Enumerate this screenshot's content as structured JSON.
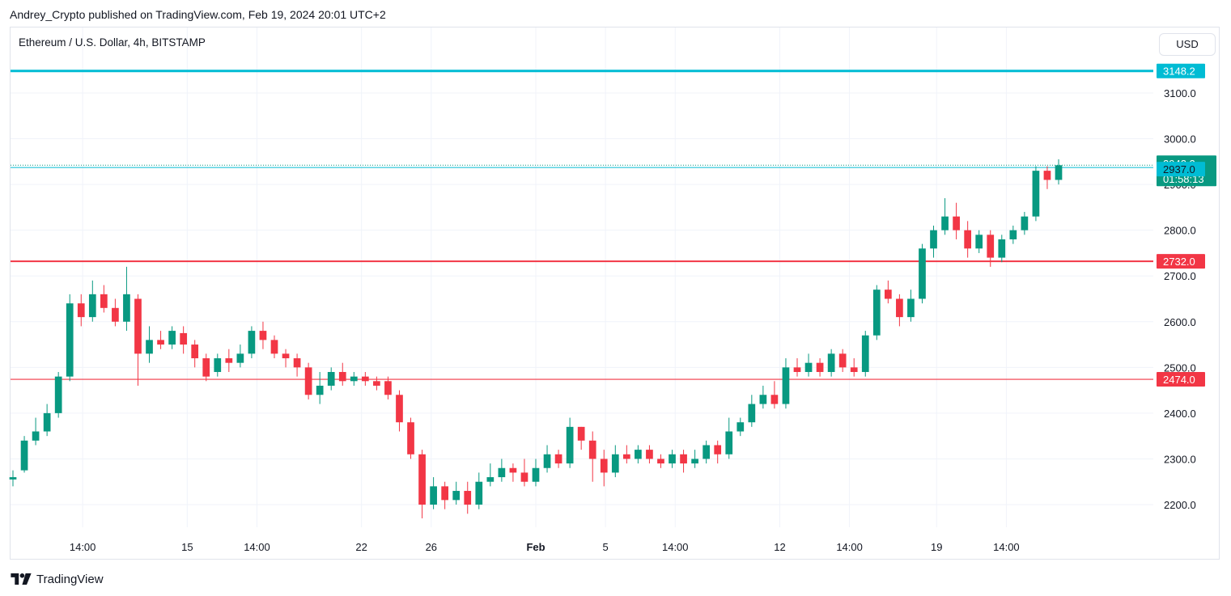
{
  "header": {
    "published_by": "Andrey_Crypto published on TradingView.com, Feb 19, 2024 20:01 UTC+2"
  },
  "symbol_line": "Ethereum / U.S. Dollar, 4h, BITSTAMP",
  "currency_button": "USD",
  "footer": {
    "brand": "TradingView"
  },
  "colors": {
    "up": "#089981",
    "down": "#f23645",
    "support": "#f23645",
    "resistance": "#00bcd4",
    "grid": "#f0f3fa"
  },
  "chart_data": {
    "type": "candlestick",
    "title": "Ethereum / U.S. Dollar, 4h, BITSTAMP",
    "ylim": [
      2150,
      3200
    ],
    "y_ticks": [
      "3100.0",
      "3000.0",
      "2900.0",
      "2800.0",
      "2700.0",
      "2600.0",
      "2500.0",
      "2400.0",
      "2300.0",
      "2200.0"
    ],
    "x_ticks": [
      "14:00",
      "15",
      "14:00",
      "22",
      "26",
      "Feb",
      "5",
      "14:00",
      "12",
      "14:00",
      "19",
      "14:00"
    ],
    "x_tick_positions": [
      4,
      10,
      14,
      20,
      24,
      30,
      34,
      38,
      44,
      48,
      53,
      57
    ],
    "x_tick_bold": [
      false,
      false,
      false,
      false,
      false,
      true,
      false,
      false,
      false,
      false,
      false,
      false
    ],
    "horizontal_levels": [
      {
        "label": "3148.2",
        "value": 3148.2,
        "color": "#00bcd4",
        "style": "thick"
      },
      {
        "label": "2732.0",
        "value": 2732.0,
        "color": "#f23645",
        "style": "solid"
      },
      {
        "label": "2474.0",
        "value": 2474.0,
        "color": "#f23645",
        "style": "thin"
      }
    ],
    "last_price": {
      "value": "2942.2",
      "countdown": "01:58:13",
      "color": "#089981"
    },
    "alert_level": {
      "value": "2937.0",
      "color": "#00bcd4"
    },
    "ohlc": [
      [
        2255,
        2260,
        2240,
        2275
      ],
      [
        2275,
        2340,
        2270,
        2350
      ],
      [
        2340,
        2360,
        2330,
        2390
      ],
      [
        2360,
        2400,
        2350,
        2420
      ],
      [
        2400,
        2480,
        2390,
        2490
      ],
      [
        2480,
        2640,
        2470,
        2660
      ],
      [
        2640,
        2610,
        2590,
        2660
      ],
      [
        2610,
        2660,
        2600,
        2690
      ],
      [
        2660,
        2630,
        2620,
        2680
      ],
      [
        2630,
        2600,
        2590,
        2650
      ],
      [
        2600,
        2660,
        2580,
        2720
      ],
      [
        2650,
        2530,
        2460,
        2660
      ],
      [
        2530,
        2560,
        2510,
        2590
      ],
      [
        2560,
        2550,
        2540,
        2580
      ],
      [
        2550,
        2580,
        2540,
        2590
      ],
      [
        2575,
        2550,
        2530,
        2590
      ],
      [
        2550,
        2520,
        2500,
        2560
      ],
      [
        2520,
        2480,
        2470,
        2530
      ],
      [
        2490,
        2520,
        2480,
        2530
      ],
      [
        2520,
        2510,
        2490,
        2540
      ],
      [
        2510,
        2530,
        2500,
        2550
      ],
      [
        2530,
        2580,
        2520,
        2590
      ],
      [
        2580,
        2560,
        2540,
        2600
      ],
      [
        2560,
        2530,
        2520,
        2570
      ],
      [
        2530,
        2520,
        2500,
        2540
      ],
      [
        2520,
        2500,
        2480,
        2530
      ],
      [
        2500,
        2440,
        2430,
        2510
      ],
      [
        2440,
        2460,
        2420,
        2490
      ],
      [
        2460,
        2490,
        2450,
        2500
      ],
      [
        2490,
        2470,
        2460,
        2510
      ],
      [
        2470,
        2480,
        2460,
        2490
      ],
      [
        2480,
        2470,
        2460,
        2490
      ],
      [
        2470,
        2460,
        2450,
        2480
      ],
      [
        2470,
        2440,
        2430,
        2480
      ],
      [
        2440,
        2380,
        2360,
        2450
      ],
      [
        2380,
        2310,
        2300,
        2390
      ],
      [
        2310,
        2200,
        2170,
        2320
      ],
      [
        2200,
        2240,
        2190,
        2260
      ],
      [
        2240,
        2210,
        2190,
        2250
      ],
      [
        2210,
        2230,
        2200,
        2250
      ],
      [
        2230,
        2200,
        2180,
        2250
      ],
      [
        2200,
        2250,
        2190,
        2270
      ],
      [
        2250,
        2260,
        2240,
        2290
      ],
      [
        2260,
        2280,
        2250,
        2300
      ],
      [
        2280,
        2270,
        2250,
        2290
      ],
      [
        2270,
        2250,
        2240,
        2300
      ],
      [
        2250,
        2280,
        2240,
        2300
      ],
      [
        2280,
        2310,
        2270,
        2330
      ],
      [
        2310,
        2290,
        2280,
        2320
      ],
      [
        2290,
        2370,
        2280,
        2390
      ],
      [
        2370,
        2340,
        2320,
        2370
      ],
      [
        2340,
        2300,
        2250,
        2360
      ],
      [
        2300,
        2270,
        2240,
        2320
      ],
      [
        2270,
        2310,
        2260,
        2330
      ],
      [
        2310,
        2300,
        2290,
        2330
      ],
      [
        2300,
        2320,
        2290,
        2330
      ],
      [
        2320,
        2300,
        2290,
        2330
      ],
      [
        2300,
        2290,
        2280,
        2310
      ],
      [
        2290,
        2310,
        2280,
        2320
      ],
      [
        2310,
        2290,
        2270,
        2320
      ],
      [
        2290,
        2300,
        2280,
        2320
      ],
      [
        2300,
        2330,
        2290,
        2340
      ],
      [
        2330,
        2310,
        2290,
        2340
      ],
      [
        2310,
        2360,
        2300,
        2390
      ],
      [
        2360,
        2380,
        2350,
        2390
      ],
      [
        2380,
        2420,
        2370,
        2440
      ],
      [
        2420,
        2440,
        2410,
        2460
      ],
      [
        2440,
        2420,
        2410,
        2470
      ],
      [
        2420,
        2500,
        2410,
        2520
      ],
      [
        2500,
        2490,
        2480,
        2520
      ],
      [
        2490,
        2510,
        2480,
        2530
      ],
      [
        2510,
        2490,
        2480,
        2520
      ],
      [
        2490,
        2530,
        2480,
        2540
      ],
      [
        2530,
        2500,
        2490,
        2540
      ],
      [
        2500,
        2490,
        2480,
        2520
      ],
      [
        2490,
        2570,
        2480,
        2580
      ],
      [
        2570,
        2670,
        2560,
        2680
      ],
      [
        2670,
        2650,
        2640,
        2690
      ],
      [
        2650,
        2610,
        2590,
        2660
      ],
      [
        2610,
        2650,
        2600,
        2670
      ],
      [
        2650,
        2760,
        2640,
        2770
      ],
      [
        2760,
        2800,
        2740,
        2810
      ],
      [
        2800,
        2830,
        2790,
        2870
      ],
      [
        2830,
        2800,
        2780,
        2860
      ],
      [
        2800,
        2760,
        2740,
        2820
      ],
      [
        2760,
        2790,
        2750,
        2800
      ],
      [
        2790,
        2740,
        2720,
        2800
      ],
      [
        2740,
        2780,
        2730,
        2790
      ],
      [
        2780,
        2800,
        2770,
        2810
      ],
      [
        2800,
        2830,
        2790,
        2840
      ],
      [
        2830,
        2930,
        2820,
        2940
      ],
      [
        2930,
        2910,
        2890,
        2940
      ],
      [
        2910,
        2942,
        2900,
        2955
      ]
    ]
  }
}
